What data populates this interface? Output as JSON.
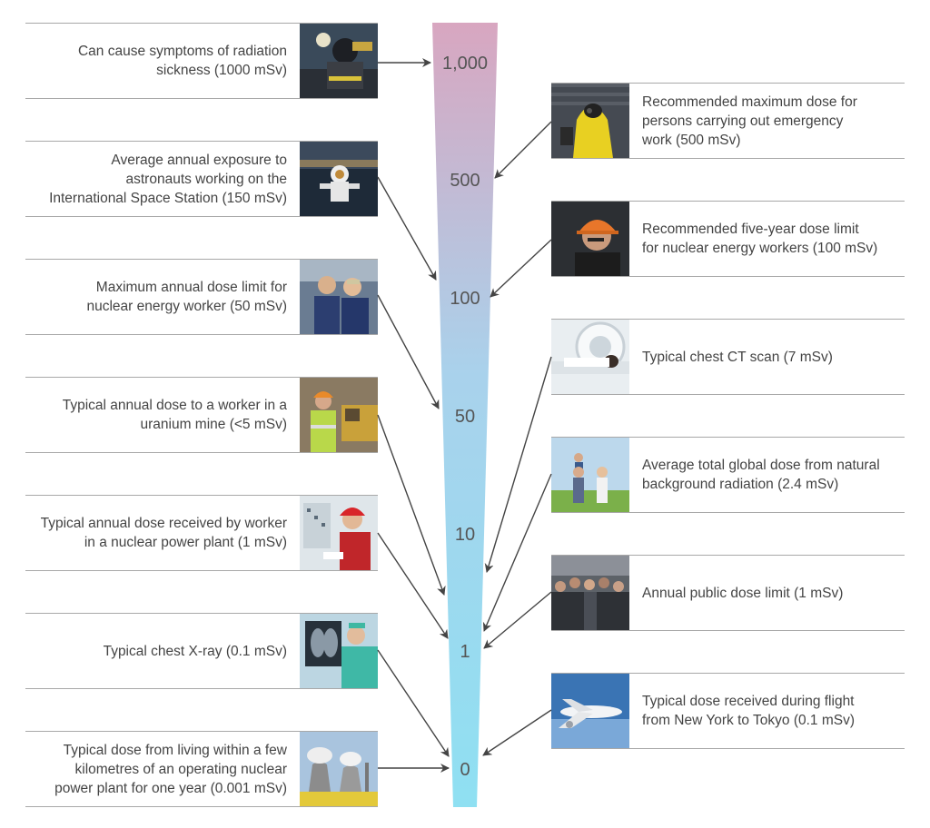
{
  "scale": {
    "unit": "mSv",
    "ticks": [
      "1,000",
      "500",
      "100",
      "50",
      "10",
      "1",
      "0"
    ],
    "top_color": "#d8a6c0",
    "bottom_color": "#8fe0f2"
  },
  "left_items": [
    {
      "lines": [
        "Can cause symptoms of radiation",
        "sickness (1000 mSv)"
      ],
      "dose": "1000 mSv",
      "icon": "firefighter-photo"
    },
    {
      "lines": [
        "Average annual exposure to",
        "astronauts working on the",
        "International Space Station (150 mSv)"
      ],
      "dose": "150 mSv",
      "icon": "astronaut-photo"
    },
    {
      "lines": [
        "Maximum annual dose limit for",
        "nuclear energy worker (50 mSv)"
      ],
      "dose": "50 mSv",
      "icon": "nuclear-workers-photo"
    },
    {
      "lines": [
        "Typical annual dose to a worker in a",
        "uranium mine (<5 mSv)"
      ],
      "dose": "<5 mSv",
      "icon": "miner-photo"
    },
    {
      "lines": [
        "Typical annual dose received by worker",
        "in a nuclear power plant (1 mSv)"
      ],
      "dose": "1 mSv",
      "icon": "control-room-photo"
    },
    {
      "lines": [
        "Typical chest X-ray (0.1 mSv)"
      ],
      "dose": "0.1 mSv",
      "icon": "xray-photo"
    },
    {
      "lines": [
        "Typical dose from living within a few",
        "kilometres of an operating nuclear",
        "power plant for one year (0.001 mSv)"
      ],
      "dose": "0.001 mSv",
      "icon": "power-plant-photo"
    }
  ],
  "right_items": [
    {
      "lines": [
        "Recommended maximum dose for",
        "persons carrying out emergency",
        "work (500 mSv)"
      ],
      "dose": "500 mSv",
      "icon": "hazmat-photo"
    },
    {
      "lines": [
        "Recommended five-year dose limit",
        "for nuclear energy workers (100 mSv)"
      ],
      "dose": "100 mSv",
      "icon": "hardhat-worker-photo"
    },
    {
      "lines": [
        "Typical chest CT scan (7 mSv)"
      ],
      "dose": "7 mSv",
      "icon": "ct-scan-photo"
    },
    {
      "lines": [
        "Average total global dose from natural",
        "background radiation (2.4 mSv)"
      ],
      "dose": "2.4 mSv",
      "icon": "family-photo"
    },
    {
      "lines": [
        "Annual public dose limit (1 mSv)"
      ],
      "dose": "1 mSv",
      "icon": "crowd-photo"
    },
    {
      "lines": [
        "Typical dose received during flight",
        "from New York to Tokyo (0.1 mSv)"
      ],
      "dose": "0.1 mSv",
      "icon": "airplane-photo"
    }
  ]
}
